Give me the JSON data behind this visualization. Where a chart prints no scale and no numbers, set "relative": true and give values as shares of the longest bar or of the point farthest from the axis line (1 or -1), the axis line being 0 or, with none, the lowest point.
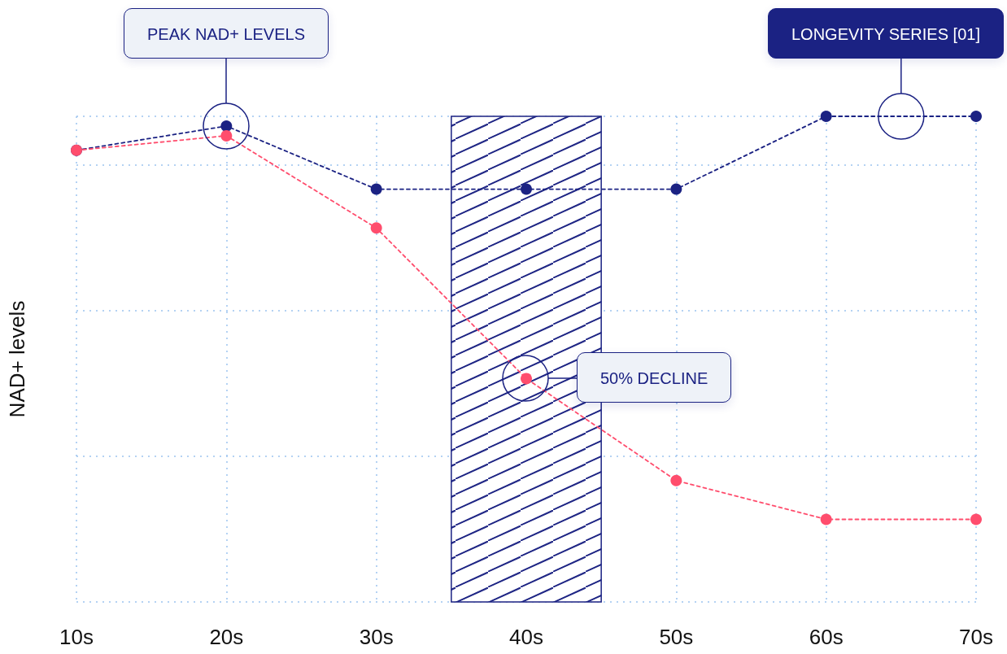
{
  "chart_data": {
    "type": "line",
    "relative": true,
    "ylabel": "NAD+ levels",
    "x": [
      10,
      20,
      30,
      40,
      50,
      60,
      70
    ],
    "xlim": [
      10,
      70
    ],
    "xticks": [
      {
        "value": 10,
        "label": "10s"
      },
      {
        "value": 20,
        "label": "20s"
      },
      {
        "value": 30,
        "label": "30s"
      },
      {
        "value": 40,
        "label": "40s"
      },
      {
        "value": 50,
        "label": "50s"
      },
      {
        "value": 60,
        "label": "60s"
      },
      {
        "value": 70,
        "label": "70s"
      }
    ],
    "series": [
      {
        "name": "LONGEVITY SERIES [01]",
        "color": "#1b2283",
        "values": [
          0.93,
          0.98,
          0.85,
          0.85,
          0.85,
          1,
          1
        ]
      },
      {
        "color": "#ff4d6d",
        "values": [
          0.93,
          0.96,
          0.77,
          0.46,
          0.25,
          0.17,
          0.17
        ]
      }
    ],
    "bands": [
      {
        "axis": "x",
        "from": 35,
        "to": 45,
        "color": "#1b2283"
      }
    ],
    "annotations": [
      "PEAK NAD+ LEVELS",
      "50% DECLINE"
    ],
    "grid": true,
    "legend": false,
    "marker": "circle",
    "line_style": "dashed"
  }
}
